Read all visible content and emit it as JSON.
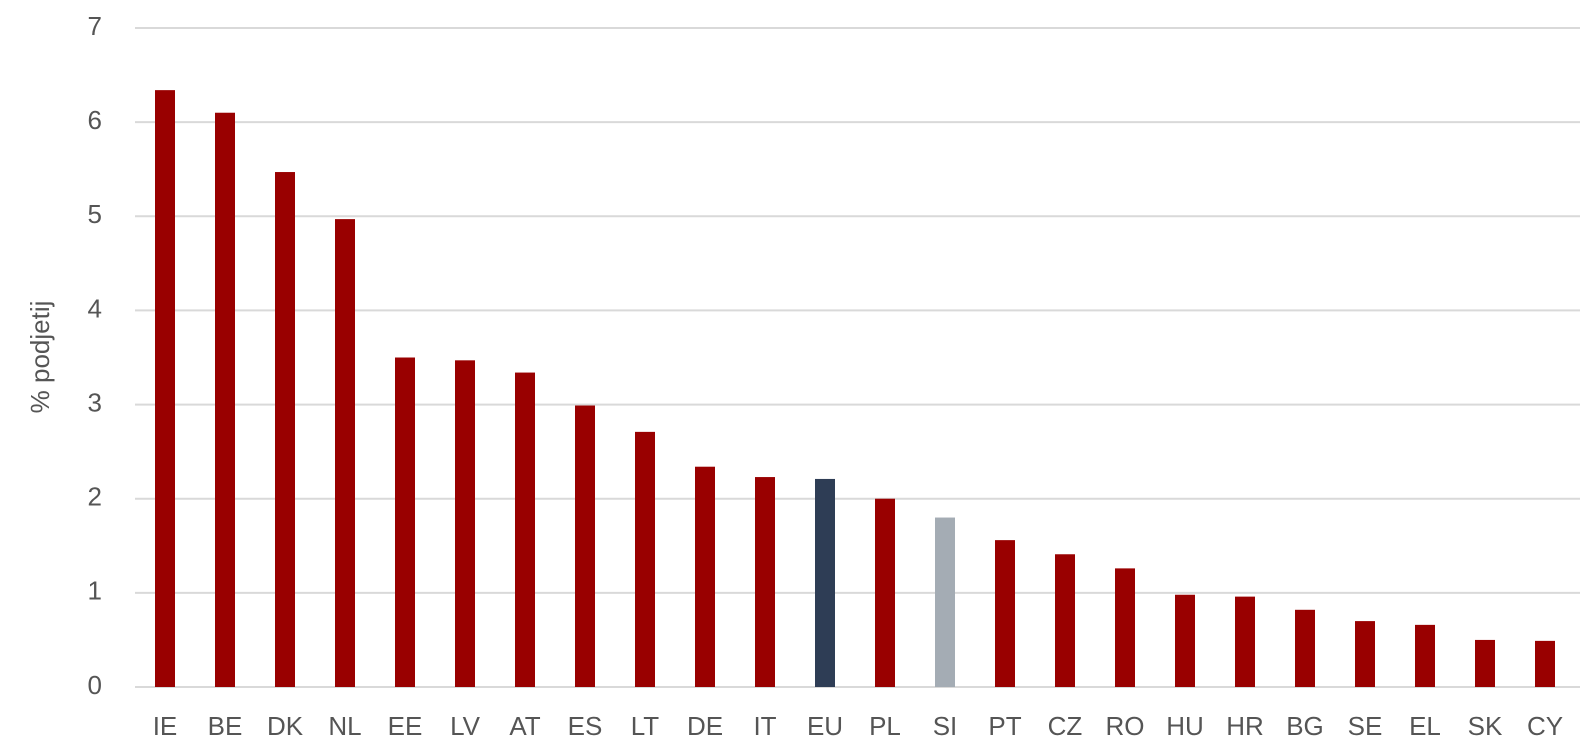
{
  "chart_data": {
    "type": "bar",
    "y_label": "% podjetij",
    "categories": [
      "IE",
      "BE",
      "DK",
      "NL",
      "EE",
      "LV",
      "AT",
      "ES",
      "LT",
      "DE",
      "IT",
      "EU",
      "PL",
      "SI",
      "PT",
      "CZ",
      "RO",
      "HU",
      "HR",
      "BG",
      "SE",
      "EL",
      "SK",
      "CY"
    ],
    "values": [
      6.34,
      6.1,
      5.47,
      4.97,
      3.5,
      3.47,
      3.34,
      2.99,
      2.71,
      2.34,
      2.23,
      2.21,
      2.0,
      1.8,
      1.56,
      1.41,
      1.26,
      0.98,
      0.96,
      0.82,
      0.7,
      0.66,
      0.5,
      0.49
    ],
    "colors": [
      "#990000",
      "#990000",
      "#990000",
      "#990000",
      "#990000",
      "#990000",
      "#990000",
      "#990000",
      "#990000",
      "#990000",
      "#990000",
      "#2e3d55",
      "#990000",
      "#a4acb4",
      "#990000",
      "#990000",
      "#990000",
      "#990000",
      "#990000",
      "#990000",
      "#990000",
      "#990000",
      "#990000",
      "#990000"
    ],
    "ylim": [
      0,
      7
    ],
    "yticks": [
      0,
      1,
      2,
      3,
      4,
      5,
      6,
      7
    ],
    "grid": true
  }
}
